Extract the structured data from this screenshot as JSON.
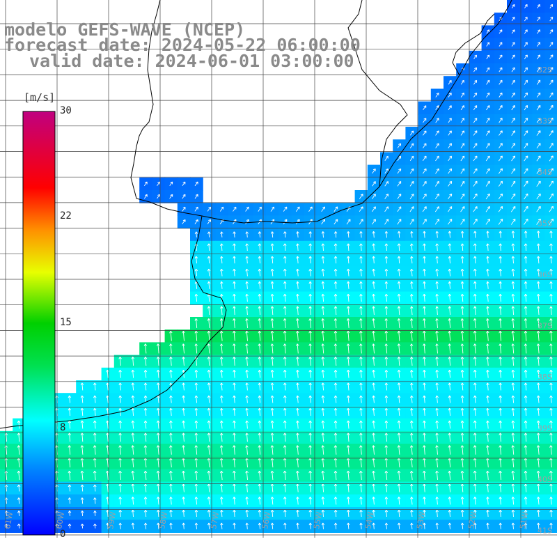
{
  "map": {
    "title_lines": [
      "modelo GEFS-WAVE (NCEP)",
      "forecast date: 2024-05-22 06:00:00",
      "valid date: 2024-06-01 03:00:00"
    ],
    "colorbar": {
      "unit": "[m/s]",
      "ticks": [
        "30",
        "22",
        "15",
        "8",
        "0"
      ],
      "tick_values": [
        30,
        22,
        15,
        8,
        0
      ],
      "colors": [
        "#0000ff",
        "#00a0ff",
        "#00ffff",
        "#00dd00",
        "#ffff00",
        "#ff8000",
        "#ff0000",
        "#c00080"
      ]
    },
    "lon_labels": [
      "61W",
      "60W",
      "59W",
      "58W",
      "57W",
      "56W",
      "55W",
      "54W",
      "53W",
      "52W",
      "51W"
    ],
    "lat_labels": [
      "32S",
      "33S",
      "34S",
      "35S",
      "36S",
      "37S",
      "38S",
      "39S",
      "40S",
      "41S"
    ],
    "field": "wind speed and direction",
    "colors": {
      "land": "#ffffff",
      "grid": "#444444",
      "coast": "#000000",
      "arrows": "#ffffff"
    }
  }
}
